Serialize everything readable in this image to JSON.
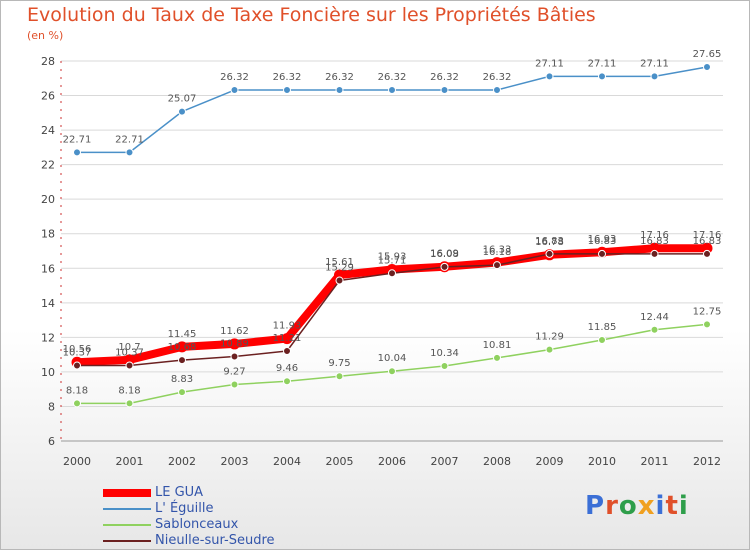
{
  "header": {
    "title": "Evolution du Taux de Taxe Foncière sur les Propriétés Bâties",
    "subtitle": "(en %)"
  },
  "brand": {
    "logo_text": "Proxiti",
    "letter_colors": [
      "#3b6fd6",
      "#e0502a",
      "#2e9e4a",
      "#f0a020",
      "#3b6fd6",
      "#e0502a",
      "#2e9e4a"
    ]
  },
  "chart_data": {
    "type": "line",
    "title": "Evolution du Taux de Taxe Foncière sur les Propriétés Bâties",
    "ylabel": "(en %)",
    "xlabel": "",
    "x": [
      "2000",
      "2001",
      "2002",
      "2003",
      "2004",
      "2005",
      "2006",
      "2007",
      "2008",
      "2009",
      "2010",
      "2011",
      "2012"
    ],
    "ylim": [
      6,
      28
    ],
    "yticks": [
      6,
      8,
      10,
      12,
      14,
      16,
      18,
      20,
      22,
      24,
      26,
      28
    ],
    "grid": "horizontal",
    "legend_position": "bottom-left",
    "series": [
      {
        "name": "LE GUA",
        "color": "#ff0000",
        "values": [
          10.56,
          10.7,
          11.45,
          11.62,
          11.93,
          15.61,
          15.93,
          16.09,
          16.33,
          16.78,
          16.93,
          17.16,
          17.16
        ],
        "labels": [
          "10.56",
          "10.7",
          "11.45",
          "11.62",
          "11.93",
          "15.61",
          "15.93",
          "16.09",
          "16.33",
          "16.78",
          "16.93",
          "17.16",
          "17.16"
        ]
      },
      {
        "name": "L' Éguille",
        "color": "#4a90c8",
        "values": [
          22.71,
          22.71,
          25.07,
          26.32,
          26.32,
          26.32,
          26.32,
          26.32,
          26.32,
          27.11,
          27.11,
          27.11,
          27.65
        ],
        "labels": [
          "22.71",
          "22.71",
          "25.07",
          "26.32",
          "26.32",
          "26.32",
          "26.32",
          "26.32",
          "26.32",
          "27.11",
          "27.11",
          "27.11",
          "27.65"
        ]
      },
      {
        "name": "Sablonceaux",
        "color": "#8fd15f",
        "values": [
          8.18,
          8.18,
          8.83,
          9.27,
          9.46,
          9.75,
          10.04,
          10.34,
          10.81,
          11.29,
          11.85,
          12.44,
          12.75
        ],
        "labels": [
          "8.18",
          "8.18",
          "8.83",
          "9.27",
          "9.46",
          "9.75",
          "10.04",
          "10.34",
          "10.81",
          "11.29",
          "11.85",
          "12.44",
          "12.75"
        ]
      },
      {
        "name": "Nieulle-sur-Seudre",
        "color": "#6b2020",
        "values": [
          10.37,
          10.37,
          10.68,
          10.89,
          11.21,
          15.29,
          15.71,
          16.08,
          16.18,
          16.83,
          16.83,
          16.83,
          16.83
        ],
        "labels": [
          "10.37",
          "10.37",
          "10.68",
          "10.89",
          "11.21",
          "15.29",
          "15.71",
          "16.08",
          "16.18",
          "16.83",
          "16.83",
          "16.83",
          "16.83"
        ]
      }
    ]
  }
}
